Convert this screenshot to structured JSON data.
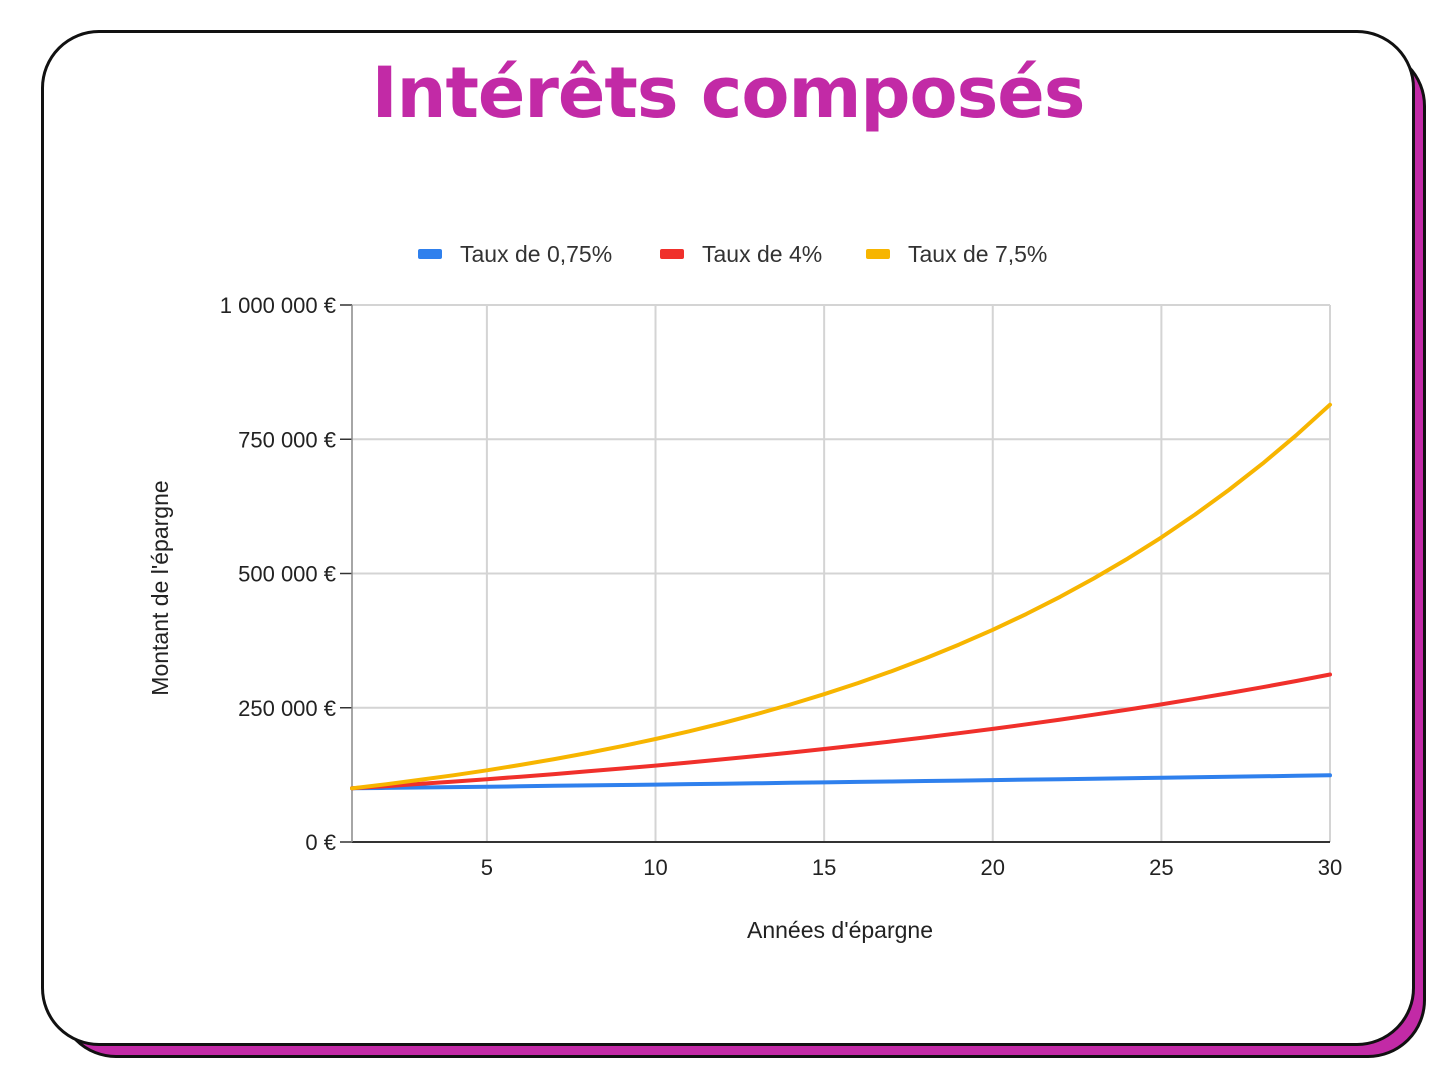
{
  "title": "Intérêts composés",
  "colors": {
    "accent": "#c22aa6",
    "blue": "#2f80ed",
    "red": "#f0302b",
    "orange": "#f7b500",
    "grid": "#d4d4d4"
  },
  "chart_data": {
    "type": "line",
    "xlabel": "Années d'épargne",
    "ylabel": "Montant de l'épargne",
    "xlim": [
      1,
      30
    ],
    "ylim": [
      0,
      1000000
    ],
    "x_ticks": [
      5,
      10,
      15,
      20,
      25,
      30
    ],
    "y_ticks": [
      0,
      250000,
      500000,
      750000,
      1000000
    ],
    "y_tick_labels": [
      "0 €",
      "250 000 €",
      "500 000 €",
      "750 000 €",
      "1 000 000 €"
    ],
    "grid": true,
    "legend_position": "top",
    "x": [
      1,
      2,
      3,
      4,
      5,
      6,
      7,
      8,
      9,
      10,
      11,
      12,
      13,
      14,
      15,
      16,
      17,
      18,
      19,
      20,
      21,
      22,
      23,
      24,
      25,
      26,
      27,
      28,
      29,
      30
    ],
    "series": [
      {
        "name": "Taux de 0,75%",
        "color": "#2f80ed",
        "values": [
          100000,
          100750,
          101506,
          102267,
          103034,
          103807,
          104585,
          105370,
          106160,
          106956,
          107758,
          108566,
          109381,
          110201,
          111028,
          111860,
          112699,
          113544,
          114396,
          115254,
          116118,
          116989,
          117867,
          118751,
          119642,
          120539,
          121443,
          122354,
          123271,
          124196
        ]
      },
      {
        "name": "Taux de 4%",
        "color": "#f0302b",
        "values": [
          100000,
          104000,
          108160,
          112486,
          116986,
          121665,
          126532,
          131593,
          136857,
          142331,
          148024,
          153945,
          160103,
          166507,
          173168,
          180094,
          187298,
          194790,
          202582,
          210685,
          219112,
          227877,
          236992,
          246472,
          256330,
          266584,
          277247,
          288337,
          299870,
          311865
        ]
      },
      {
        "name": "Taux de 7,5%",
        "color": "#f7b500",
        "values": [
          100000,
          107500,
          115563,
          124230,
          133547,
          143563,
          154330,
          165905,
          178348,
          191724,
          206103,
          221561,
          238178,
          256041,
          275244,
          295888,
          318079,
          341935,
          367580,
          395149,
          424785,
          456644,
          490892,
          527709,
          567287,
          609834,
          655571,
          704739,
          757595,
          814415
        ]
      }
    ]
  }
}
